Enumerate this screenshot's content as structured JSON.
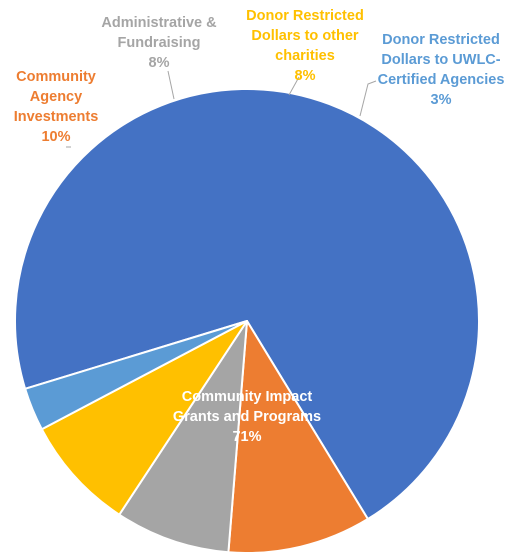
{
  "chart_data": {
    "type": "pie",
    "title": "",
    "slices": [
      {
        "label": [
          "Community Impact",
          "Grants and Programs"
        ],
        "value": 71,
        "value_label": "71%",
        "color": "#4472C4",
        "label_color": "#ffffff"
      },
      {
        "label": [
          "Community",
          "Agency",
          "Investments"
        ],
        "value": 10,
        "value_label": "10%",
        "color": "#ED7D31",
        "label_color": "#ED7D31"
      },
      {
        "label": [
          "Administrative &",
          "Fundraising"
        ],
        "value": 8,
        "value_label": "8%",
        "color": "#A5A5A5",
        "label_color": "#A5A5A5"
      },
      {
        "label": [
          "Donor Restricted",
          "Dollars to other",
          "charities"
        ],
        "value": 8,
        "value_label": "8%",
        "color": "#FFC000",
        "label_color": "#FFC000"
      },
      {
        "label": [
          "Donor Restricted",
          "Dollars to UWLC-",
          "Certified Agencies"
        ],
        "value": 3,
        "value_label": "3%",
        "color": "#5B9BD5",
        "label_color": "#5B9BD5"
      }
    ]
  }
}
